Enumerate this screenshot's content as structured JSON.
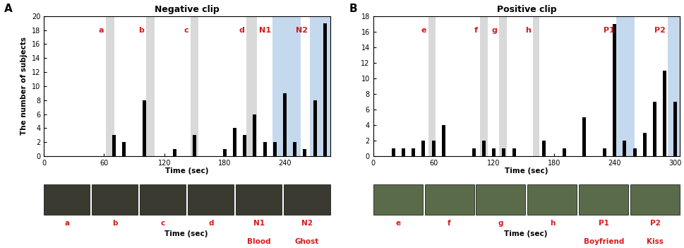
{
  "chart_data": [
    {
      "type": "bar",
      "panel": "A",
      "title": "Negative clip",
      "xlabel": "Time (sec)",
      "ylabel": "The number of subjects",
      "x": [
        70,
        80,
        100,
        130,
        150,
        180,
        190,
        200,
        210,
        220,
        230,
        240,
        250,
        260,
        270,
        280
      ],
      "values": [
        3,
        2,
        8,
        1,
        3,
        1,
        4,
        3,
        6,
        2,
        2,
        9,
        2,
        1,
        8,
        19
      ],
      "color": "#000000",
      "xlim": [
        0,
        285
      ],
      "xticks": [
        0,
        60,
        120,
        180,
        240
      ],
      "ylim": [
        0,
        20
      ],
      "yticks": [
        0,
        2,
        4,
        6,
        8,
        10,
        12,
        14,
        16,
        18,
        20
      ],
      "regions": [
        {
          "label": "a",
          "start": 62,
          "end": 70,
          "color": "#d9d9d9"
        },
        {
          "label": "b",
          "start": 102,
          "end": 110,
          "color": "#d9d9d9"
        },
        {
          "label": "c",
          "start": 146,
          "end": 154,
          "color": "#d9d9d9"
        },
        {
          "label": "d",
          "start": 202,
          "end": 212,
          "color": "#d9d9d9"
        },
        {
          "label": "N1",
          "start": 228,
          "end": 256,
          "color": "#c5d9ee"
        },
        {
          "label": "N2",
          "start": 265,
          "end": 285,
          "color": "#c5d9ee"
        }
      ],
      "frames": [
        {
          "label": "a"
        },
        {
          "label": "b"
        },
        {
          "label": "c"
        },
        {
          "label": "d"
        },
        {
          "label": "N1",
          "caption": "Blood"
        },
        {
          "label": "N2",
          "caption": "Ghost"
        }
      ],
      "frames_label": "Time (sec)"
    },
    {
      "type": "bar",
      "panel": "B",
      "title": "Positive clip",
      "xlabel": "Time (sec)",
      "x": [
        20,
        30,
        40,
        50,
        60,
        70,
        100,
        110,
        120,
        130,
        140,
        170,
        190,
        210,
        230,
        240,
        250,
        260,
        270,
        280,
        290,
        300
      ],
      "values": [
        1,
        1,
        1,
        2,
        2,
        4,
        1,
        2,
        1,
        1,
        1,
        2,
        1,
        5,
        1,
        17,
        2,
        1,
        3,
        7,
        11,
        7
      ],
      "color": "#000000",
      "xlim": [
        0,
        305
      ],
      "xticks": [
        0,
        60,
        120,
        180,
        240,
        300
      ],
      "ylim": [
        0,
        18
      ],
      "yticks": [
        0,
        2,
        4,
        6,
        8,
        10,
        12,
        14,
        16,
        18
      ],
      "regions": [
        {
          "label": "e",
          "start": 55,
          "end": 62,
          "color": "#d9d9d9"
        },
        {
          "label": "f",
          "start": 106,
          "end": 114,
          "color": "#d9d9d9"
        },
        {
          "label": "g",
          "start": 125,
          "end": 133,
          "color": "#d9d9d9"
        },
        {
          "label": "h",
          "start": 159,
          "end": 165,
          "color": "#d9d9d9"
        },
        {
          "label": "P1",
          "start": 242,
          "end": 260,
          "color": "#c5d9ee"
        },
        {
          "label": "P2",
          "start": 293,
          "end": 305,
          "color": "#c5d9ee"
        }
      ],
      "frames": [
        {
          "label": "e"
        },
        {
          "label": "f"
        },
        {
          "label": "g"
        },
        {
          "label": "h"
        },
        {
          "label": "P1",
          "caption": "Boyfriend"
        },
        {
          "label": "P2",
          "caption": "Kiss"
        }
      ],
      "frames_label": "Time (sec)"
    }
  ]
}
